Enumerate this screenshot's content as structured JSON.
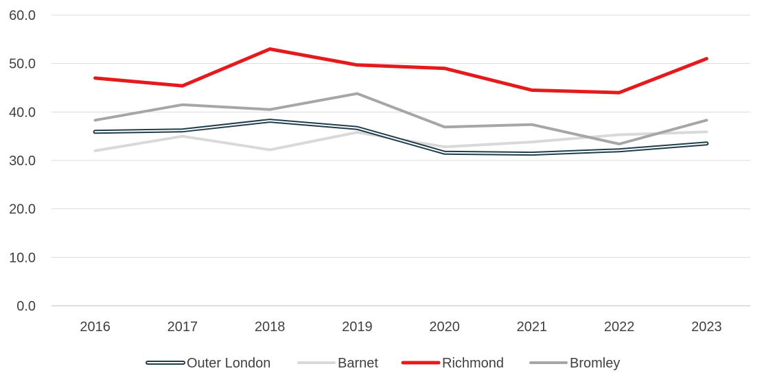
{
  "chart_data": {
    "type": "line",
    "title": "",
    "xlabel": "",
    "ylabel": "",
    "ylim": [
      0,
      60
    ],
    "yticks": [
      "0.0",
      "10.0",
      "20.0",
      "30.0",
      "40.0",
      "50.0",
      "60.0"
    ],
    "grid": true,
    "legend_position": "bottom",
    "categories": [
      "2016",
      "2017",
      "2018",
      "2019",
      "2020",
      "2021",
      "2022",
      "2023"
    ],
    "series": [
      {
        "name": "Outer London",
        "values": [
          35.9,
          36.2,
          38.2,
          36.7,
          31.6,
          31.4,
          32.1,
          33.5
        ],
        "color": "#1f3c4a",
        "style": "outlined"
      },
      {
        "name": "Barnet",
        "values": [
          32.0,
          35.0,
          32.2,
          35.8,
          32.8,
          33.8,
          35.3,
          35.9
        ],
        "color": "#d9d9d9",
        "style": "solid"
      },
      {
        "name": "Richmond",
        "values": [
          47.0,
          45.4,
          53.0,
          49.7,
          49.0,
          44.5,
          44.0,
          51.0
        ],
        "color": "#e41a1c",
        "style": "solid"
      },
      {
        "name": "Bromley",
        "values": [
          38.3,
          41.5,
          40.5,
          43.8,
          36.9,
          37.4,
          33.4,
          38.3
        ],
        "color": "#a6a6a6",
        "style": "solid"
      }
    ]
  }
}
